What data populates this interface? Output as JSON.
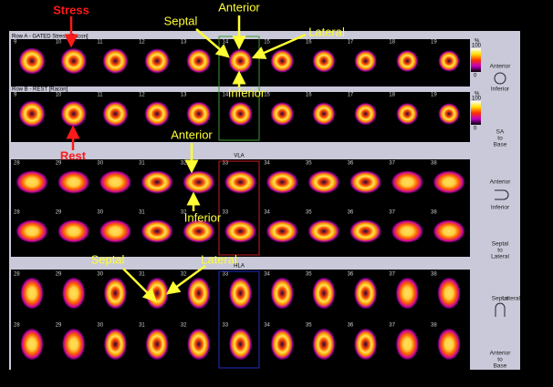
{
  "annotations": [
    "Stress",
    "Rest",
    "Septal",
    "Anterior",
    "Lateral",
    "Inferior",
    "Anterior",
    "Inferior",
    "Septal",
    "Lateral"
  ],
  "panels": [
    {
      "rows": [
        {
          "label": "A",
          "header": "Row A - GATED Stress [Racon]",
          "slices": [
            "9",
            "10",
            "11",
            "12",
            "13",
            "14",
            "15",
            "16",
            "17",
            "18",
            "19"
          ]
        },
        {
          "label": "B",
          "header": "Row B - REST [Racon]",
          "slices": [
            "9",
            "10",
            "11",
            "12",
            "13",
            "14",
            "15",
            "16",
            "17",
            "18",
            "19"
          ]
        }
      ]
    },
    {
      "title": "VLA",
      "rows": [
        {
          "label": "A",
          "slices": [
            "28",
            "29",
            "30",
            "31",
            "32",
            "33",
            "34",
            "35",
            "36",
            "37",
            "38"
          ]
        },
        {
          "label": "B",
          "slices": [
            "28",
            "29",
            "30",
            "31",
            "32",
            "33",
            "34",
            "35",
            "36",
            "37",
            "38"
          ]
        }
      ]
    },
    {
      "title": "HLA",
      "rows": [
        {
          "label": "A",
          "slices": [
            "28",
            "29",
            "30",
            "31",
            "32",
            "33",
            "34",
            "35",
            "36",
            "37",
            "38"
          ]
        },
        {
          "label": "B",
          "slices": [
            "28",
            "29",
            "30",
            "31",
            "32",
            "33",
            "34",
            "35",
            "36",
            "37",
            "38"
          ]
        }
      ]
    }
  ],
  "colorbar": {
    "unit": "%",
    "max": "100",
    "min": "0"
  },
  "side_labels": [
    "Anterior",
    "Inferior",
    "SA",
    "to",
    "Base",
    "Anterior",
    "Inferior",
    "Septal",
    "to",
    "Lateral",
    "Septal",
    "Lateral",
    "Anterior",
    "to",
    "Base"
  ]
}
